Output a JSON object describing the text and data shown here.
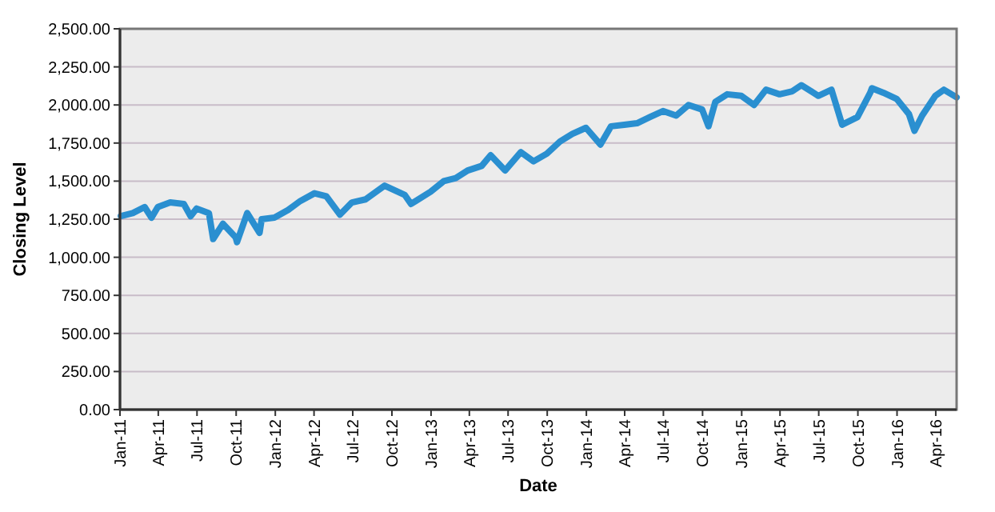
{
  "chart_data": {
    "type": "line",
    "xlabel": "Date",
    "ylabel": "Closing Level",
    "x": [
      "2011-01-03",
      "2011-01-31",
      "2011-02-28",
      "2011-03-16",
      "2011-03-31",
      "2011-04-29",
      "2011-05-31",
      "2011-06-16",
      "2011-06-30",
      "2011-07-29",
      "2011-08-08",
      "2011-08-31",
      "2011-09-30",
      "2011-10-03",
      "2011-10-27",
      "2011-11-25",
      "2011-11-30",
      "2011-12-30",
      "2012-01-31",
      "2012-02-29",
      "2012-04-02",
      "2012-04-30",
      "2012-06-01",
      "2012-06-29",
      "2012-07-31",
      "2012-09-14",
      "2012-10-31",
      "2012-11-15",
      "2012-12-31",
      "2013-01-31",
      "2013-02-28",
      "2013-03-28",
      "2013-04-30",
      "2013-05-21",
      "2013-06-24",
      "2013-07-31",
      "2013-08-30",
      "2013-09-30",
      "2013-10-31",
      "2013-11-29",
      "2013-12-31",
      "2014-02-03",
      "2014-02-28",
      "2014-03-31",
      "2014-04-30",
      "2014-05-30",
      "2014-06-30",
      "2014-07-31",
      "2014-08-29",
      "2014-09-30",
      "2014-10-15",
      "2014-10-31",
      "2014-11-28",
      "2014-12-31",
      "2015-01-30",
      "2015-02-27",
      "2015-03-31",
      "2015-04-30",
      "2015-05-21",
      "2015-06-30",
      "2015-07-31",
      "2015-08-25",
      "2015-09-30",
      "2015-10-30",
      "2015-11-03",
      "2015-11-30",
      "2015-12-31",
      "2016-01-29",
      "2016-02-11",
      "2016-02-29",
      "2016-03-31",
      "2016-04-20",
      "2016-05-20"
    ],
    "series": [
      {
        "color": "#2a8fd0",
        "values": [
          1270,
          1290,
          1330,
          1260,
          1330,
          1360,
          1350,
          1270,
          1320,
          1290,
          1120,
          1220,
          1130,
          1100,
          1290,
          1160,
          1250,
          1260,
          1310,
          1370,
          1420,
          1400,
          1280,
          1360,
          1380,
          1470,
          1410,
          1350,
          1430,
          1500,
          1520,
          1570,
          1600,
          1670,
          1570,
          1690,
          1630,
          1680,
          1760,
          1810,
          1850,
          1740,
          1860,
          1870,
          1880,
          1920,
          1960,
          1930,
          2000,
          1970,
          1860,
          2020,
          2070,
          2060,
          2000,
          2100,
          2070,
          2090,
          2130,
          2060,
          2100,
          1870,
          1920,
          2080,
          2110,
          2080,
          2040,
          1940,
          1830,
          1930,
          2060,
          2100,
          2050
        ]
      }
    ],
    "xlim": [
      "2011-01-01",
      "2016-05-20"
    ],
    "xticks": [
      {
        "value": "2011-01-01",
        "label": "Jan-11"
      },
      {
        "value": "2011-04-01",
        "label": "Apr-11"
      },
      {
        "value": "2011-07-01",
        "label": "Jul-11"
      },
      {
        "value": "2011-10-01",
        "label": "Oct-11"
      },
      {
        "value": "2012-01-01",
        "label": "Jan-12"
      },
      {
        "value": "2012-04-01",
        "label": "Apr-12"
      },
      {
        "value": "2012-07-01",
        "label": "Jul-12"
      },
      {
        "value": "2012-10-01",
        "label": "Oct-12"
      },
      {
        "value": "2013-01-01",
        "label": "Jan-13"
      },
      {
        "value": "2013-04-01",
        "label": "Apr-13"
      },
      {
        "value": "2013-07-01",
        "label": "Jul-13"
      },
      {
        "value": "2013-10-01",
        "label": "Oct-13"
      },
      {
        "value": "2014-01-01",
        "label": "Jan-14"
      },
      {
        "value": "2014-04-01",
        "label": "Apr-14"
      },
      {
        "value": "2014-07-01",
        "label": "Jul-14"
      },
      {
        "value": "2014-10-01",
        "label": "Oct-14"
      },
      {
        "value": "2015-01-01",
        "label": "Jan-15"
      },
      {
        "value": "2015-04-01",
        "label": "Apr-15"
      },
      {
        "value": "2015-07-01",
        "label": "Jul-15"
      },
      {
        "value": "2015-10-01",
        "label": "Oct-15"
      },
      {
        "value": "2016-01-01",
        "label": "Jan-16"
      },
      {
        "value": "2016-04-01",
        "label": "Apr-16"
      }
    ],
    "ylim": [
      0,
      2500
    ],
    "yticks": [
      {
        "value": 0,
        "label": "0.00"
      },
      {
        "value": 250,
        "label": "250.00"
      },
      {
        "value": 500,
        "label": "500.00"
      },
      {
        "value": 750,
        "label": "750.00"
      },
      {
        "value": 1000,
        "label": "1,000.00"
      },
      {
        "value": 1250,
        "label": "1,250.00"
      },
      {
        "value": 1500,
        "label": "1,500.00"
      },
      {
        "value": 1750,
        "label": "1,750.00"
      },
      {
        "value": 2000,
        "label": "2,000.00"
      },
      {
        "value": 2250,
        "label": "2,250.00"
      },
      {
        "value": 2500,
        "label": "2,500.00"
      }
    ],
    "grid": "y",
    "marker": "none",
    "line_style": "solid"
  }
}
